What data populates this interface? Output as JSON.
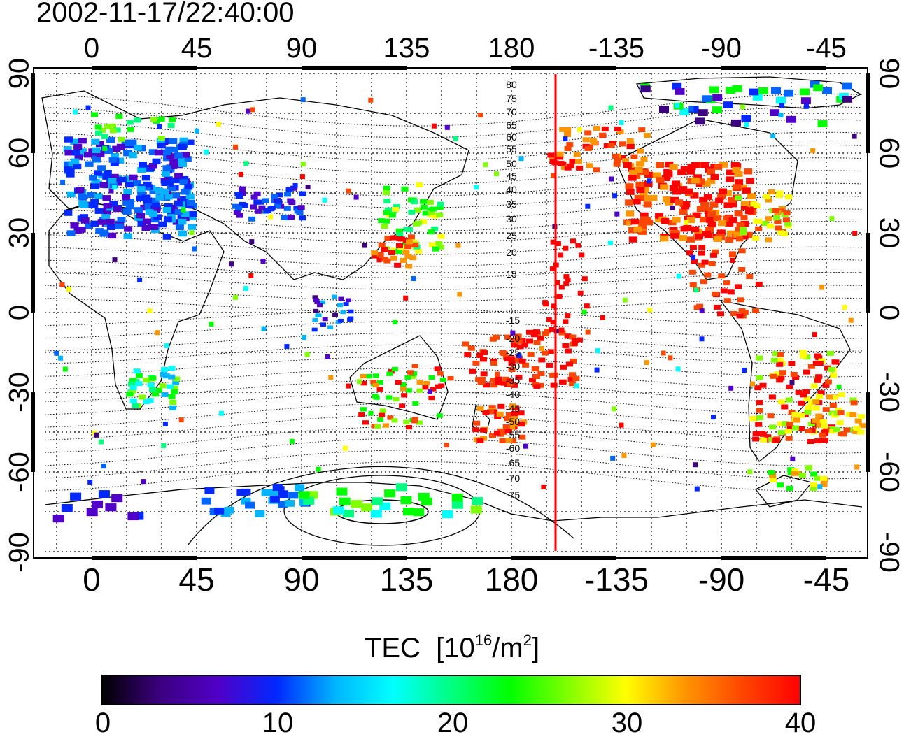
{
  "title": "2002-11-17/22:40:00",
  "map": {
    "lon_ticks": [
      "0",
      "45",
      "90",
      "135",
      "180",
      "-135",
      "-90",
      "-45"
    ],
    "lat_ticks": [
      "90",
      "60",
      "30",
      "0",
      "-30",
      "-60",
      "-90"
    ],
    "contour_labels_north": [
      "80",
      "75",
      "70",
      "65",
      "60",
      "55",
      "50",
      "45",
      "40",
      "35",
      "30",
      "25",
      "20",
      "15"
    ],
    "contour_labels_south": [
      "-15",
      "-20",
      "-25",
      "-30",
      "-35",
      "-40",
      "-45",
      "-50",
      "-55",
      "-60",
      "-65",
      "-70",
      "-75"
    ],
    "marker_line_color": "#ff0000"
  },
  "colorbar": {
    "label": "TEC",
    "unit_prefix": "[10",
    "unit_exp": "16",
    "unit_mid": "/m",
    "unit_exp2": "2",
    "unit_suffix": "]",
    "ticks": [
      "0",
      "10",
      "20",
      "30",
      "40"
    ],
    "range": [
      0,
      40
    ],
    "colors": [
      "#000000",
      "#3c0080",
      "#5000c8",
      "#0028ff",
      "#00b4ff",
      "#00ffff",
      "#00ff80",
      "#00ff00",
      "#80ff00",
      "#ffff00",
      "#ff9600",
      "#ff4600",
      "#ff0000"
    ]
  }
}
